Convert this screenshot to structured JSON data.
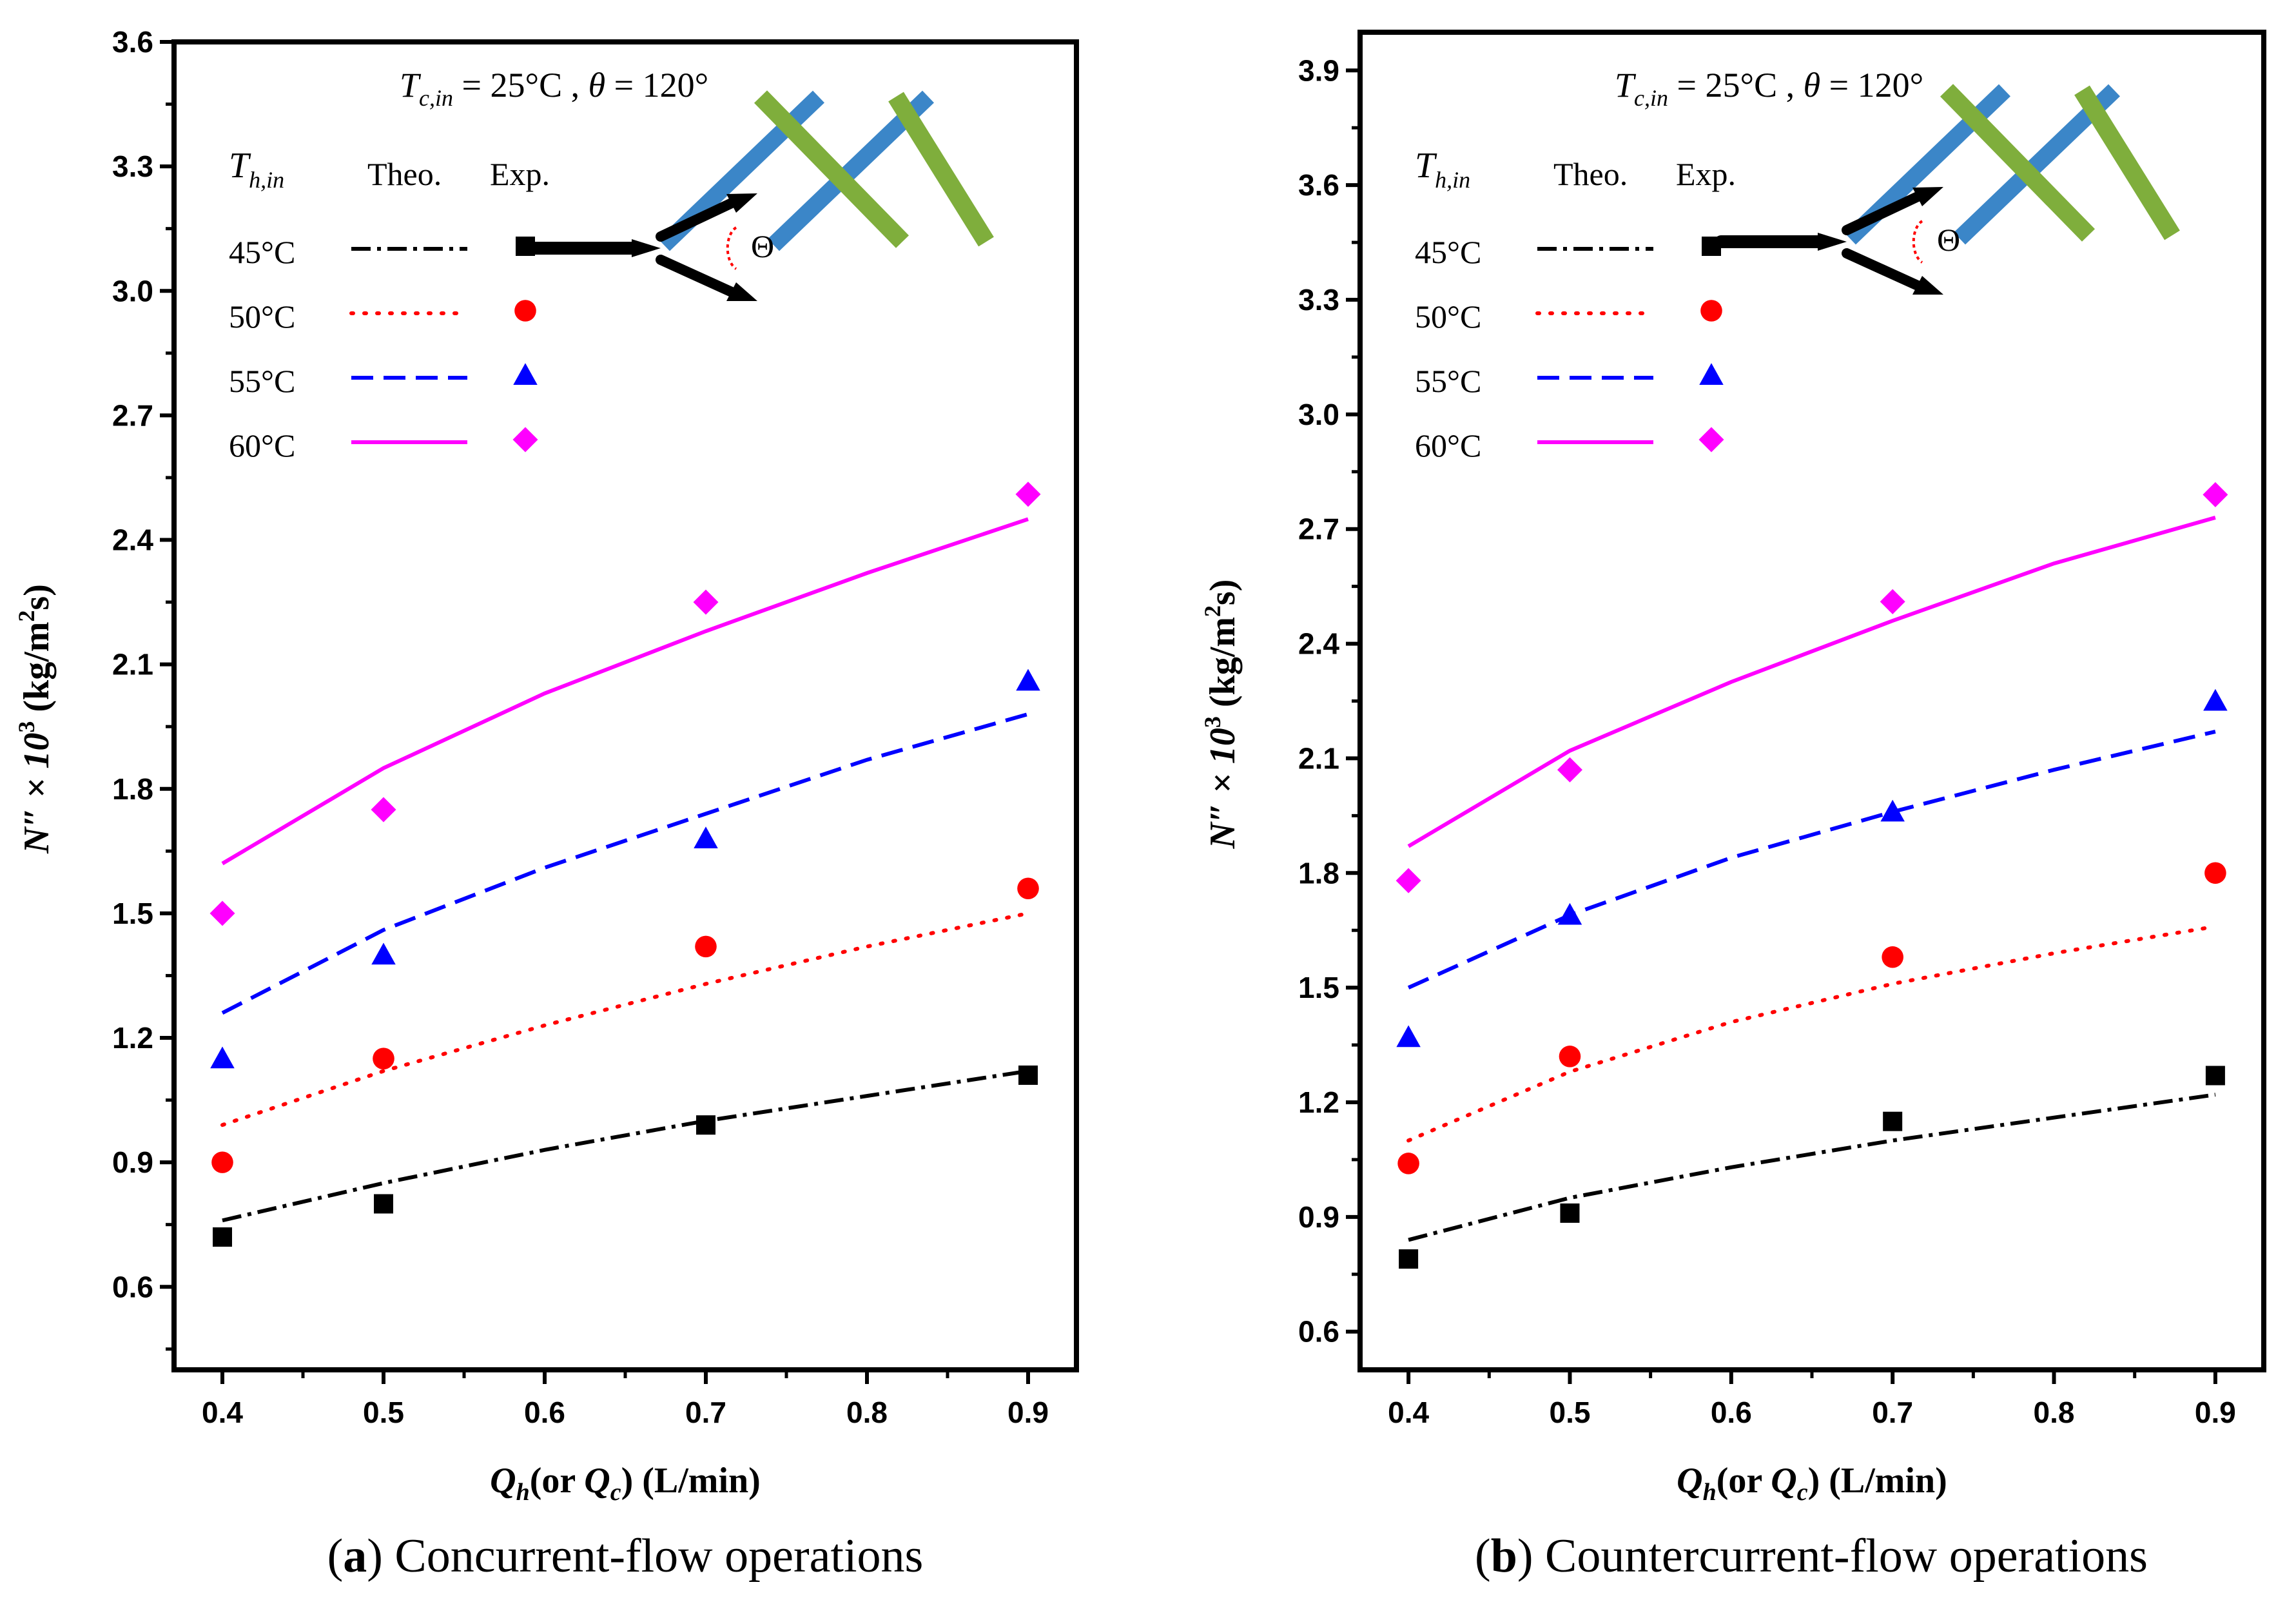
{
  "figure": {
    "colors": {
      "45": "#000000",
      "50": "#ff0000",
      "55": "#0000ff",
      "60": "#ff00ff",
      "fiber_blue": "#3b86c8",
      "fiber_green": "#7fae3c"
    },
    "legend": {
      "series_header": "T",
      "series_header_sub": "h,in",
      "theo_label": "Theo.",
      "exp_label": "Exp."
    },
    "condition": {
      "tc_main": "T",
      "tc_sub": "c,in",
      "tc_value": " = 25°C ,",
      "theta_symbol": "θ",
      "theta_value": " = 120°"
    },
    "inset": {
      "theta_label": "Θ"
    }
  },
  "chart_data": [
    {
      "type": "line",
      "panel": "a",
      "caption_prefix": "a",
      "caption_text": " Concurrent-flow operations",
      "xlabel_parts": [
        "Q",
        "h",
        "(or ",
        "Q",
        "c",
        ") (L/min)"
      ],
      "ylabel_parts": [
        "N″ × 10",
        "3",
        " (kg/m",
        "2",
        "s)"
      ],
      "xlim": [
        0.37,
        0.93
      ],
      "ylim": [
        0.4,
        3.6
      ],
      "xticks": [
        0.4,
        0.5,
        0.6,
        0.7,
        0.8,
        0.9
      ],
      "xtick_labels": [
        "0.4",
        "0.5",
        "0.6",
        "0.7",
        "0.8",
        "0.9"
      ],
      "yticks": [
        0.6,
        0.9,
        1.2,
        1.5,
        1.8,
        2.1,
        2.4,
        2.7,
        3.0,
        3.3,
        3.6
      ],
      "ytick_labels": [
        "0.6",
        "0.9",
        "1.2",
        "1.5",
        "1.8",
        "2.1",
        "2.4",
        "2.7",
        "3.0",
        "3.3",
        "3.6"
      ],
      "series": [
        {
          "name": "45°C",
          "key": "45",
          "marker": "square",
          "dash": "dashdot",
          "exp_x": [
            0.4,
            0.5,
            0.7,
            0.9
          ],
          "exp_y": [
            0.72,
            0.8,
            0.99,
            1.11
          ],
          "theo_x": [
            0.4,
            0.5,
            0.6,
            0.7,
            0.8,
            0.9
          ],
          "theo_y": [
            0.76,
            0.85,
            0.93,
            1.0,
            1.06,
            1.12
          ]
        },
        {
          "name": "50°C",
          "key": "50",
          "marker": "circle",
          "dash": "dotted",
          "exp_x": [
            0.4,
            0.5,
            0.7,
            0.9
          ],
          "exp_y": [
            0.9,
            1.15,
            1.42,
            1.56
          ],
          "theo_x": [
            0.4,
            0.5,
            0.6,
            0.7,
            0.8,
            0.9
          ],
          "theo_y": [
            0.99,
            1.12,
            1.23,
            1.33,
            1.42,
            1.5
          ]
        },
        {
          "name": "55°C",
          "key": "55",
          "marker": "triangle",
          "dash": "dashed",
          "exp_x": [
            0.4,
            0.5,
            0.7,
            0.9
          ],
          "exp_y": [
            1.15,
            1.4,
            1.68,
            2.06
          ],
          "theo_x": [
            0.4,
            0.5,
            0.6,
            0.7,
            0.8,
            0.9
          ],
          "theo_y": [
            1.26,
            1.46,
            1.61,
            1.74,
            1.87,
            1.98
          ]
        },
        {
          "name": "60°C",
          "key": "60",
          "marker": "diamond",
          "dash": "solid",
          "exp_x": [
            0.4,
            0.5,
            0.7,
            0.9
          ],
          "exp_y": [
            1.5,
            1.75,
            2.25,
            2.51
          ],
          "theo_x": [
            0.4,
            0.5,
            0.6,
            0.7,
            0.8,
            0.9
          ],
          "theo_y": [
            1.62,
            1.85,
            2.03,
            2.18,
            2.32,
            2.45
          ]
        }
      ]
    },
    {
      "type": "line",
      "panel": "b",
      "caption_prefix": "b",
      "caption_text": " Countercurrent-flow operations",
      "xlabel_parts": [
        "Q",
        "h",
        "(or ",
        "Q",
        "c",
        ") (L/min)"
      ],
      "ylabel_parts": [
        "N″ × 10",
        "3",
        " (kg/m",
        "2",
        "s)"
      ],
      "xlim": [
        0.37,
        0.93
      ],
      "ylim": [
        0.5,
        4.0
      ],
      "xticks": [
        0.4,
        0.5,
        0.6,
        0.7,
        0.8,
        0.9
      ],
      "xtick_labels": [
        "0.4",
        "0.5",
        "0.6",
        "0.7",
        "0.8",
        "0.9"
      ],
      "yticks": [
        0.6,
        0.9,
        1.2,
        1.5,
        1.8,
        2.1,
        2.4,
        2.7,
        3.0,
        3.3,
        3.6,
        3.9
      ],
      "ytick_labels": [
        "0.6",
        "0.9",
        "1.2",
        "1.5",
        "1.8",
        "2.1",
        "2.4",
        "2.7",
        "3.0",
        "3.3",
        "3.6",
        "3.9"
      ],
      "series": [
        {
          "name": "45°C",
          "key": "45",
          "marker": "square",
          "dash": "dashdot",
          "exp_x": [
            0.4,
            0.5,
            0.7,
            0.9
          ],
          "exp_y": [
            0.79,
            0.91,
            1.15,
            1.27
          ],
          "theo_x": [
            0.4,
            0.5,
            0.6,
            0.7,
            0.8,
            0.9
          ],
          "theo_y": [
            0.84,
            0.95,
            1.03,
            1.1,
            1.16,
            1.22
          ]
        },
        {
          "name": "50°C",
          "key": "50",
          "marker": "circle",
          "dash": "dotted",
          "exp_x": [
            0.4,
            0.5,
            0.7,
            0.9
          ],
          "exp_y": [
            1.04,
            1.32,
            1.58,
            1.8
          ],
          "theo_x": [
            0.4,
            0.5,
            0.6,
            0.7,
            0.8,
            0.9
          ],
          "theo_y": [
            1.1,
            1.28,
            1.41,
            1.51,
            1.59,
            1.66
          ]
        },
        {
          "name": "55°C",
          "key": "55",
          "marker": "triangle",
          "dash": "dashed",
          "exp_x": [
            0.4,
            0.5,
            0.7,
            0.9
          ],
          "exp_y": [
            1.37,
            1.69,
            1.96,
            2.25
          ],
          "theo_x": [
            0.4,
            0.5,
            0.6,
            0.7,
            0.8,
            0.9
          ],
          "theo_y": [
            1.5,
            1.69,
            1.84,
            1.96,
            2.07,
            2.17
          ]
        },
        {
          "name": "60°C",
          "key": "60",
          "marker": "diamond",
          "dash": "solid",
          "exp_x": [
            0.4,
            0.5,
            0.7,
            0.9
          ],
          "exp_y": [
            1.78,
            2.07,
            2.51,
            2.79
          ],
          "theo_x": [
            0.4,
            0.5,
            0.6,
            0.7,
            0.8,
            0.9
          ],
          "theo_y": [
            1.87,
            2.12,
            2.3,
            2.46,
            2.61,
            2.73
          ]
        }
      ]
    }
  ]
}
